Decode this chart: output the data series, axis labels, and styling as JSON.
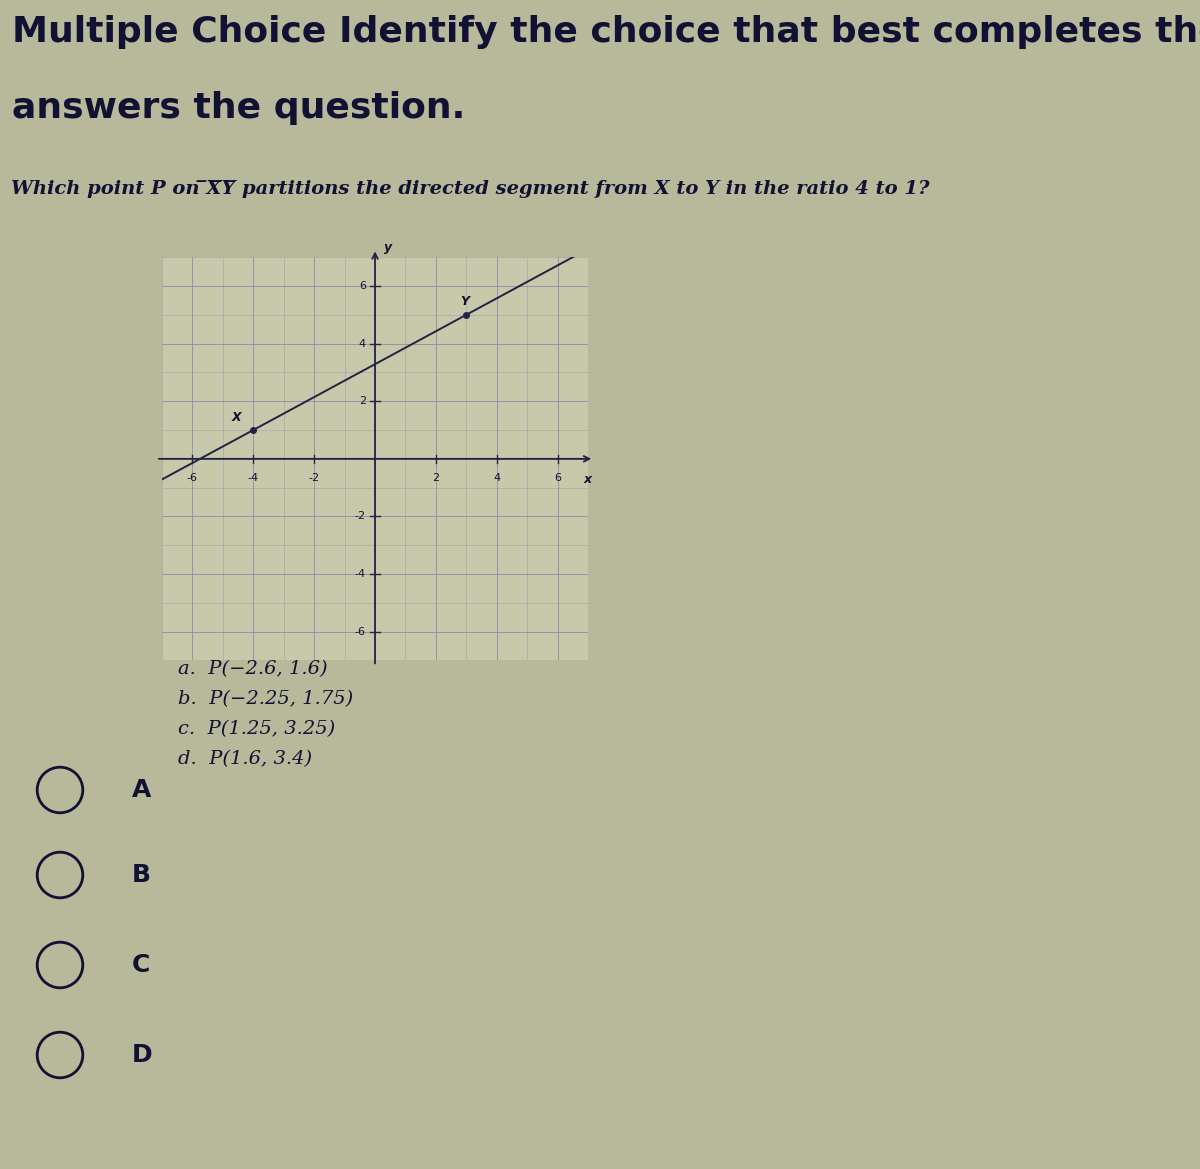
{
  "title_line1": "Multiple Choice Identify the choice that best completes the statement or",
  "title_line2": "answers the question.",
  "question_prefix": "Which point ",
  "question_P": "P",
  "question_mid1": " on ",
  "question_XY": "XY",
  "question_mid2": " partitions the directed segment from ",
  "question_X": "X",
  "question_mid3": " to ",
  "question_Y": "Y",
  "question_suffix": " in the ratio 4 to 1?",
  "background_color": "#b8b89a",
  "graph_bg": "#c8c8aa",
  "grid_color": "#8888aa",
  "axis_color": "#222244",
  "line_color": "#222244",
  "point_X": [
    -4,
    1
  ],
  "point_Y": [
    3,
    5
  ],
  "xlim": [
    -7,
    7
  ],
  "ylim": [
    -7,
    7
  ],
  "xticks": [
    -6,
    -4,
    -2,
    0,
    2,
    4,
    6
  ],
  "yticks": [
    -6,
    -4,
    -2,
    0,
    2,
    4,
    6
  ],
  "choices": [
    "a.  P(−2.6, 1.6)",
    "b.  P(−2.25, 1.75)",
    "c.  P(1.25, 3.25)",
    "d.  P(1.6, 3.4)"
  ],
  "radio_labels": [
    "A",
    "B",
    "C",
    "D"
  ],
  "text_color": "#111133",
  "title_fontsize": 26,
  "question_fontsize": 14,
  "choices_fontsize": 14,
  "radio_fontsize": 18,
  "tick_fontsize": 8
}
